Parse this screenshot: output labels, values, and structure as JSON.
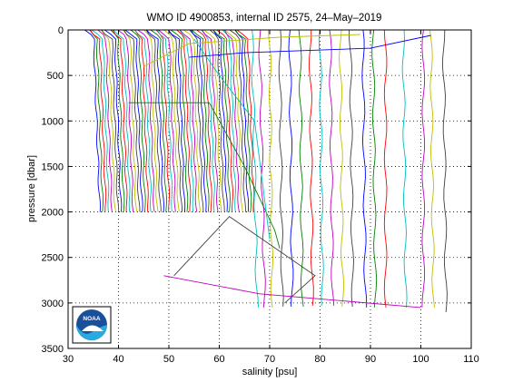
{
  "chart_data": {
    "type": "line",
    "title": "WMO ID 4900853, internal ID 2575, 24–May–2019",
    "xlabel": "salinity [psu]",
    "ylabel": "pressure [dbar]",
    "xlim": [
      30,
      110
    ],
    "ylim": [
      0,
      3500
    ],
    "y_reversed": true,
    "grid": true,
    "x_ticks": [
      30,
      40,
      50,
      60,
      70,
      80,
      90,
      100,
      110
    ],
    "y_ticks": [
      0,
      500,
      1000,
      1500,
      2000,
      2500,
      3000,
      3500
    ],
    "x_tick_labels": [
      "30",
      "40",
      "50",
      "60",
      "70",
      "80",
      "90",
      "100",
      "110"
    ],
    "y_tick_labels": [
      "0",
      "500",
      "1000",
      "1500",
      "2000",
      "2500",
      "3000",
      "3500"
    ],
    "series_colors": [
      "#0000ff",
      "#008000",
      "#ff0000",
      "#00bfbf",
      "#bf00bf",
      "#bfbf00",
      "#404040"
    ],
    "dense_profiles": {
      "description_type": "offset salinity profiles",
      "salinity_start": 34.5,
      "salinity_step": 0.6,
      "count": 52,
      "max_pressure": 2000
    },
    "deep_profiles": [
      {
        "salinity_top": 66.5,
        "salinity_bottom": 67.5,
        "max_pressure": 3050
      },
      {
        "salinity_top": 68.0,
        "salinity_bottom": 69.0,
        "max_pressure": 3050
      },
      {
        "salinity_top": 70.0,
        "salinity_bottom": 70.5,
        "max_pressure": 3050
      },
      {
        "salinity_top": 72.0,
        "salinity_bottom": 72.5,
        "max_pressure": 3040
      },
      {
        "salinity_top": 74.0,
        "salinity_bottom": 74.5,
        "max_pressure": 3040
      },
      {
        "salinity_top": 76.0,
        "salinity_bottom": 76.5,
        "max_pressure": 3040
      },
      {
        "salinity_top": 78.0,
        "salinity_bottom": 78.5,
        "max_pressure": 3030
      },
      {
        "salinity_top": 80.0,
        "salinity_bottom": 80.5,
        "max_pressure": 3030
      },
      {
        "salinity_top": 82.0,
        "salinity_bottom": 82.5,
        "max_pressure": 3030
      },
      {
        "salinity_top": 84.0,
        "salinity_bottom": 84.5,
        "max_pressure": 3040
      },
      {
        "salinity_top": 86.0,
        "salinity_bottom": 86.5,
        "max_pressure": 3040
      },
      {
        "salinity_top": 88.5,
        "salinity_bottom": 89.0,
        "max_pressure": 3050
      },
      {
        "salinity_top": 90.5,
        "salinity_bottom": 91.0,
        "max_pressure": 3050
      },
      {
        "salinity_top": 93.0,
        "salinity_bottom": 93.0,
        "max_pressure": 3050
      },
      {
        "salinity_top": 96.5,
        "salinity_bottom": 97.0,
        "max_pressure": 3050
      },
      {
        "salinity_top": 100.5,
        "salinity_bottom": 100.5,
        "max_pressure": 3050
      },
      {
        "salinity_top": 102.0,
        "salinity_bottom": 102.5,
        "max_pressure": 3050
      },
      {
        "salinity_top": 104.5,
        "salinity_bottom": 105.0,
        "max_pressure": 3100
      }
    ],
    "outlier_segments": [
      {
        "x": [
          49,
          68,
          100
        ],
        "y": [
          2700,
          2900,
          3050
        ]
      },
      {
        "x": [
          51,
          62,
          79,
          73
        ],
        "y": [
          2700,
          2050,
          2700,
          3000
        ]
      },
      {
        "x": [
          42,
          58,
          65,
          71,
          72
        ],
        "y": [
          800,
          800,
          1500,
          2200,
          2400
        ]
      },
      {
        "x": [
          55,
          60,
          67,
          70
        ],
        "y": [
          100,
          500,
          1000,
          2300
        ]
      },
      {
        "x": [
          45,
          54,
          72,
          88
        ],
        "y": [
          400,
          150,
          80,
          50
        ]
      },
      {
        "x": [
          54,
          65,
          90,
          102
        ],
        "y": [
          300,
          250,
          200,
          60
        ]
      }
    ],
    "logo_text": "NOAA"
  }
}
